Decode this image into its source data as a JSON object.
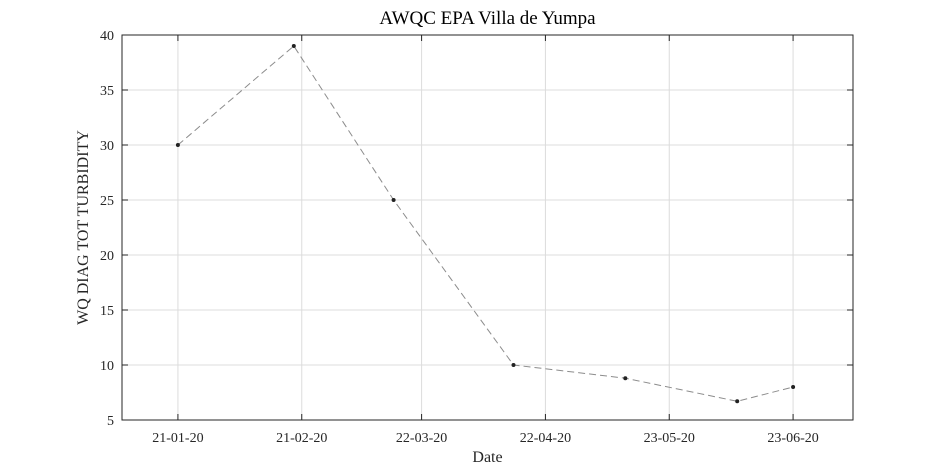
{
  "chart_data": {
    "type": "line",
    "title": "AWQC EPA Villa de Yumpa",
    "xlabel": "Date",
    "ylabel": "WQ DIAG TOT TURBIDITY",
    "x_tick_labels": [
      "21-01-20",
      "21-02-20",
      "22-03-20",
      "22-04-20",
      "23-05-20",
      "23-06-20"
    ],
    "x_tick_dates": [
      "2020-01-21",
      "2020-02-21",
      "2020-03-22",
      "2020-04-22",
      "2020-05-23",
      "2020-06-23"
    ],
    "xlim": [
      "2020-01-07",
      "2020-07-08"
    ],
    "ylim": [
      5,
      40
    ],
    "y_ticks": [
      5,
      10,
      15,
      20,
      25,
      30,
      35,
      40
    ],
    "grid": true,
    "series": [
      {
        "x": [
          "2020-01-21",
          "2020-02-19",
          "2020-03-15",
          "2020-04-14",
          "2020-05-12",
          "2020-06-09",
          "2020-06-23"
        ],
        "y": [
          30,
          39,
          25,
          10,
          8.8,
          6.7,
          8
        ],
        "line_style": "dashed",
        "line_color": "#8c8c8c",
        "marker_color": "#222222"
      }
    ]
  }
}
